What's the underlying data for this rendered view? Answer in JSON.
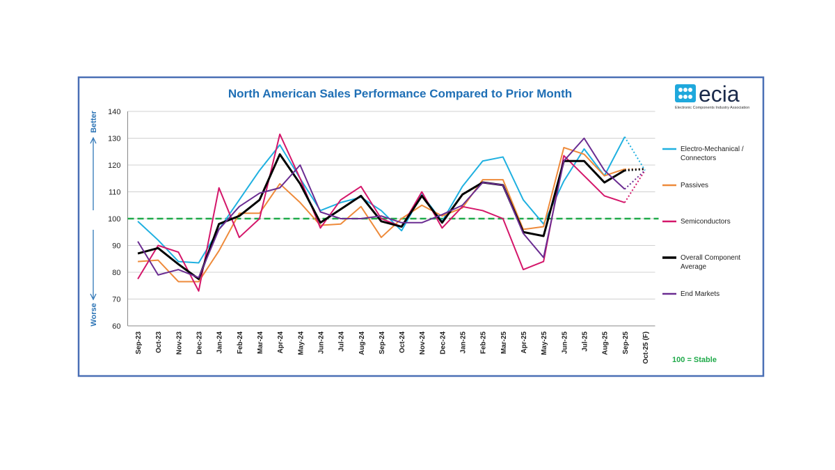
{
  "chart_data": {
    "type": "line",
    "title": "North American Sales Performance Compared to Prior Month",
    "categories": [
      "Sep-23",
      "Oct-23",
      "Nov-23",
      "Dec-23",
      "Jan-24",
      "Feb-24",
      "Mar-24",
      "Apr-24",
      "May-24",
      "Jun-24",
      "Jul-24",
      "Aug-24",
      "Sep-24",
      "Oct-24",
      "Nov-24",
      "Dec-24",
      "Jan-25",
      "Feb-25",
      "Mar-25",
      "Apr-25",
      "May-25",
      "Jun-25",
      "Jul-25",
      "Aug-25",
      "Sep-25",
      "Oct-25 (F)"
    ],
    "series": [
      {
        "name": "Electro-Mechanical / Connectors",
        "color": "#1fb0e0",
        "line_width": 2,
        "values": [
          99,
          92,
          84,
          83.5,
          96,
          107,
          118,
          127.5,
          115,
          103,
          106,
          108,
          103,
          95.5,
          109,
          99,
          112,
          121.5,
          123,
          107,
          98,
          114,
          126,
          116,
          130.5,
          118
        ]
      },
      {
        "name": "Passives",
        "color": "#ee8a3a",
        "line_width": 2,
        "values": [
          84,
          84.5,
          76.5,
          76.5,
          88,
          102,
          102,
          113,
          106,
          97.5,
          98,
          104.5,
          93,
          100,
          105,
          101,
          104,
          114.5,
          114.5,
          96,
          97,
          126.5,
          124,
          116,
          118.5,
          118.5
        ]
      },
      {
        "name": "Semiconductors",
        "color": "#d4166a",
        "line_width": 2,
        "values": [
          77.5,
          90,
          87.5,
          73,
          111.5,
          93,
          100,
          131.5,
          115,
          96.5,
          107,
          112,
          100,
          97,
          110,
          96.5,
          104.5,
          103,
          100,
          81,
          84,
          123.5,
          116,
          108.5,
          106,
          118
        ]
      },
      {
        "name": "Overall Component Average",
        "color": "#000000",
        "line_width": 3,
        "values": [
          87,
          89,
          83,
          77.5,
          98,
          101,
          107,
          124,
          113,
          98.5,
          103.5,
          108.5,
          99,
          97,
          108.5,
          98.5,
          109,
          113.5,
          112.5,
          95,
          93.5,
          121.5,
          121.5,
          113.5,
          118,
          118.5
        ]
      },
      {
        "name": "End Markets",
        "color": "#6a2c91",
        "line_width": 2,
        "values": [
          91.5,
          79,
          81,
          78,
          96,
          104.5,
          109.5,
          111.5,
          120,
          102.5,
          100,
          100,
          101,
          98.5,
          98.5,
          101.5,
          105,
          113.5,
          112.5,
          94.5,
          85.5,
          121.5,
          130,
          118,
          111,
          118
        ]
      }
    ],
    "last_point_forecast": true,
    "ylim": [
      60,
      140
    ],
    "yticks": [
      60,
      70,
      80,
      90,
      100,
      110,
      120,
      130,
      140
    ],
    "grid": true,
    "reference_line": {
      "value": 100,
      "color": "#1faa4a"
    },
    "annotations": {
      "better": "Better",
      "worse": "Worse",
      "stable": "100 = Stable"
    },
    "legend": "right"
  },
  "logo": {
    "name": "ecia",
    "tagline": "Electronic Components Industry Association"
  }
}
